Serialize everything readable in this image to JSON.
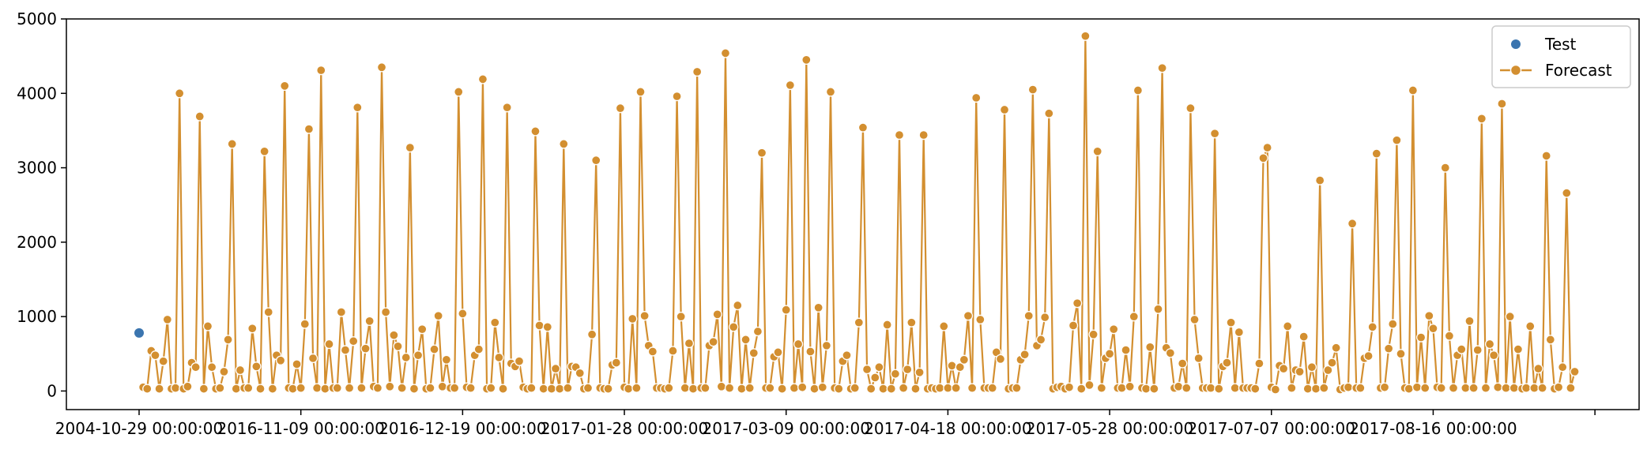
{
  "chart_data": {
    "type": "line",
    "title": "",
    "xlabel": "",
    "ylabel": "",
    "ylim": [
      -250,
      5000
    ],
    "y_ticks": [
      0,
      1000,
      2000,
      3000,
      4000,
      5000
    ],
    "x_tick_labels": [
      "2004-10-29 00:00:00",
      "2016-11-09 00:00:00",
      "2016-12-19 00:00:00",
      "2017-01-28 00:00:00",
      "2017-03-09 00:00:00",
      "2017-04-18 00:00:00",
      "2017-05-28 00:00:00",
      "2017-07-07 00:00:00",
      "2017-08-16 00:00:00",
      ""
    ],
    "x_note": "categorical time index: tick labels printed every 40 positions (index 0, 40, 80, ...); Test point at index 0, Forecast spans index 1-356",
    "grid": false,
    "legend": "top-right",
    "series": [
      {
        "name": "Test",
        "style": "scatter",
        "color": "#3b75af",
        "x_start": 0,
        "values": [
          780
        ]
      },
      {
        "name": "Forecast",
        "style": "line-marker",
        "color": "#d38f30",
        "x_start": 1,
        "values": [
          50,
          30,
          540,
          480,
          30,
          400,
          960,
          30,
          40,
          4000,
          30,
          60,
          380,
          320,
          3690,
          30,
          870,
          320,
          30,
          40,
          260,
          690,
          3320,
          30,
          280,
          40,
          40,
          840,
          330,
          30,
          3220,
          1060,
          30,
          480,
          410,
          4100,
          40,
          30,
          360,
          40,
          900,
          3520,
          440,
          40,
          4310,
          30,
          630,
          40,
          40,
          1060,
          550,
          40,
          670,
          3810,
          40,
          570,
          940,
          60,
          40,
          4350,
          1060,
          60,
          750,
          600,
          40,
          450,
          3270,
          30,
          480,
          830,
          30,
          40,
          560,
          1010,
          60,
          420,
          40,
          40,
          4020,
          1040,
          50,
          40,
          480,
          560,
          4190,
          30,
          40,
          920,
          450,
          30,
          3810,
          370,
          330,
          400,
          50,
          30,
          40,
          3490,
          880,
          30,
          860,
          30,
          300,
          30,
          3320,
          40,
          330,
          320,
          240,
          30,
          40,
          760,
          3100,
          40,
          30,
          30,
          350,
          380,
          3800,
          50,
          30,
          970,
          40,
          4020,
          1010,
          610,
          530,
          40,
          40,
          30,
          40,
          540,
          3960,
          1000,
          40,
          640,
          30,
          4290,
          40,
          40,
          610,
          660,
          1030,
          60,
          4540,
          40,
          860,
          1150,
          30,
          690,
          40,
          510,
          800,
          3200,
          40,
          40,
          460,
          520,
          30,
          1090,
          4110,
          40,
          630,
          50,
          4450,
          530,
          30,
          1120,
          50,
          610,
          4020,
          40,
          30,
          400,
          480,
          30,
          40,
          920,
          3540,
          290,
          30,
          180,
          320,
          30,
          890,
          30,
          230,
          3440,
          40,
          290,
          920,
          30,
          250,
          3440,
          30,
          40,
          30,
          40,
          870,
          40,
          340,
          40,
          320,
          420,
          1010,
          40,
          3940,
          960,
          40,
          40,
          40,
          520,
          430,
          3780,
          30,
          40,
          40,
          420,
          490,
          1010,
          4050,
          610,
          690,
          990,
          3730,
          30,
          50,
          60,
          30,
          50,
          880,
          1180,
          30,
          4770,
          80,
          760,
          3220,
          40,
          440,
          500,
          830,
          40,
          40,
          550,
          60,
          1000,
          4040,
          40,
          30,
          590,
          30,
          1100,
          4340,
          580,
          510,
          40,
          60,
          370,
          40,
          3800,
          960,
          440,
          40,
          40,
          40,
          3460,
          30,
          330,
          380,
          920,
          40,
          790,
          40,
          40,
          40,
          30,
          370,
          3130,
          3270,
          50,
          20,
          340,
          300,
          870,
          40,
          280,
          260,
          730,
          30,
          320,
          30,
          2830,
          40,
          280,
          380,
          580,
          20,
          40,
          50,
          2250,
          40,
          40,
          440,
          470,
          860,
          3190,
          40,
          50,
          570,
          900,
          3370,
          500,
          40,
          30,
          4040,
          50,
          720,
          40,
          1010,
          840,
          50,
          40,
          3000,
          740,
          40,
          480,
          560,
          40,
          940,
          40,
          550,
          3660,
          40,
          630,
          480,
          50,
          3860,
          40,
          1000,
          40,
          560,
          30,
          40,
          870,
          40,
          300,
          40,
          3160,
          690,
          30,
          50,
          320,
          2660,
          40,
          260
        ]
      }
    ]
  }
}
